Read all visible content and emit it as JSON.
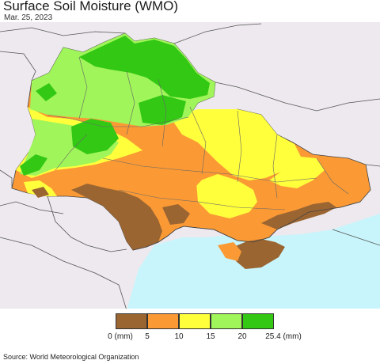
{
  "title": "Surface Soil Moisture (WMO)",
  "date": "Mar. 25, 2023",
  "source": "Source: World Meteorological Organization",
  "legend": {
    "colors": [
      "#9b6532",
      "#fb9a35",
      "#ffff3c",
      "#a0f55a",
      "#32c814"
    ],
    "labels": [
      "0 (mm)",
      "5",
      "10",
      "15",
      "20",
      "25.4 (mm)"
    ]
  },
  "map_colors": {
    "background_land": "#ede9ee",
    "sea": "#c8f5fc",
    "border": "#555555"
  }
}
